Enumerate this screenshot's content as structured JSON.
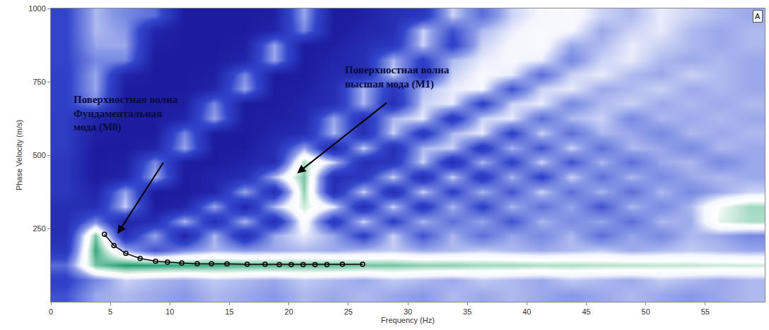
{
  "chart_data": {
    "type": "heatmap",
    "x_label": "Frequency (Hz)",
    "y_label": "Phase Velocity (m/s)",
    "xlim": [
      0,
      60
    ],
    "ylim": [
      0,
      1000
    ],
    "xticks": [
      0,
      5,
      10,
      15,
      20,
      25,
      30,
      35,
      40,
      45,
      50,
      55
    ],
    "yticks": [
      250,
      500,
      750,
      1000
    ],
    "grid": false,
    "panel_label": "A",
    "heatmap": {
      "x": [
        1.25,
        3.75,
        6.25,
        8.75,
        11.25,
        13.75,
        16.25,
        18.75,
        21.25,
        23.75,
        26.25,
        28.75,
        31.25,
        33.75,
        36.25,
        38.75,
        41.25,
        43.75,
        46.25,
        48.75,
        51.25,
        53.75,
        56.25,
        58.75
      ],
      "y": [
        25,
        75,
        125,
        175,
        225,
        275,
        325,
        375,
        425,
        475,
        525,
        575,
        625,
        675,
        725,
        775,
        825,
        875,
        925,
        975
      ],
      "cells": [
        [
          0.45,
          0.6,
          0.62,
          0.6,
          0.58,
          0.62,
          0.6,
          0.58,
          0.62,
          0.6,
          0.62,
          0.6,
          0.58,
          0.62,
          0.6,
          0.62,
          0.6,
          0.58,
          0.6,
          0.62,
          0.6,
          0.58,
          0.6,
          0.62
        ],
        [
          0.4,
          0.55,
          0.65,
          0.62,
          0.6,
          0.64,
          0.62,
          0.6,
          0.64,
          0.62,
          0.6,
          0.64,
          0.62,
          0.6,
          0.64,
          0.62,
          0.6,
          0.64,
          0.62,
          0.6,
          0.64,
          0.62,
          0.6,
          0.62
        ],
        [
          0.5,
          0.9,
          0.97,
          0.96,
          0.95,
          0.94,
          0.93,
          0.93,
          0.92,
          0.92,
          0.9,
          0.9,
          0.88,
          0.88,
          0.86,
          0.86,
          0.85,
          0.85,
          0.84,
          0.84,
          0.83,
          0.83,
          0.82,
          0.82
        ],
        [
          0.35,
          0.95,
          0.62,
          0.45,
          0.55,
          0.62,
          0.58,
          0.6,
          0.62,
          0.6,
          0.62,
          0.64,
          0.6,
          0.62,
          0.64,
          0.62,
          0.6,
          0.62,
          0.64,
          0.6,
          0.62,
          0.64,
          0.62,
          0.6
        ],
        [
          0.3,
          0.9,
          0.3,
          0.6,
          0.25,
          0.62,
          0.3,
          0.6,
          0.68,
          0.6,
          0.4,
          0.65,
          0.45,
          0.62,
          0.5,
          0.6,
          0.55,
          0.62,
          0.5,
          0.6,
          0.55,
          0.62,
          0.6,
          0.55
        ],
        [
          0.3,
          0.55,
          0.25,
          0.3,
          0.62,
          0.3,
          0.62,
          0.3,
          0.75,
          0.35,
          0.65,
          0.4,
          0.62,
          0.5,
          0.6,
          0.45,
          0.62,
          0.55,
          0.6,
          0.5,
          0.62,
          0.6,
          0.8,
          0.85
        ],
        [
          0.3,
          0.3,
          0.65,
          0.2,
          0.25,
          0.6,
          0.25,
          0.62,
          0.82,
          0.68,
          0.3,
          0.65,
          0.35,
          0.62,
          0.4,
          0.62,
          0.5,
          0.6,
          0.45,
          0.62,
          0.55,
          0.62,
          0.78,
          0.86
        ],
        [
          0.35,
          0.25,
          0.6,
          0.2,
          0.2,
          0.25,
          0.6,
          0.3,
          0.88,
          0.3,
          0.65,
          0.3,
          0.65,
          0.4,
          0.62,
          0.45,
          0.65,
          0.5,
          0.62,
          0.5,
          0.62,
          0.55,
          0.6,
          0.65
        ],
        [
          0.35,
          0.2,
          0.25,
          0.62,
          0.2,
          0.25,
          0.3,
          0.62,
          0.9,
          0.3,
          0.35,
          0.65,
          0.3,
          0.65,
          0.35,
          0.62,
          0.4,
          0.65,
          0.5,
          0.62,
          0.55,
          0.6,
          0.62,
          0.6
        ],
        [
          0.35,
          0.2,
          0.22,
          0.55,
          0.2,
          0.2,
          0.25,
          0.3,
          0.85,
          0.65,
          0.3,
          0.35,
          0.65,
          0.3,
          0.62,
          0.4,
          0.65,
          0.45,
          0.62,
          0.5,
          0.6,
          0.62,
          0.55,
          0.6
        ],
        [
          0.38,
          0.2,
          0.2,
          0.25,
          0.6,
          0.2,
          0.2,
          0.3,
          0.6,
          0.25,
          0.65,
          0.3,
          0.62,
          0.65,
          0.35,
          0.62,
          0.45,
          0.65,
          0.5,
          0.62,
          0.6,
          0.55,
          0.62,
          0.6
        ],
        [
          0.38,
          0.22,
          0.2,
          0.2,
          0.55,
          0.2,
          0.2,
          0.25,
          0.3,
          0.62,
          0.3,
          0.65,
          0.35,
          0.62,
          0.68,
          0.4,
          0.65,
          0.5,
          0.62,
          0.6,
          0.55,
          0.62,
          0.6,
          0.62
        ],
        [
          0.38,
          0.25,
          0.2,
          0.2,
          0.25,
          0.6,
          0.2,
          0.22,
          0.25,
          0.6,
          0.3,
          0.62,
          0.68,
          0.35,
          0.65,
          0.68,
          0.5,
          0.62,
          0.65,
          0.55,
          0.62,
          0.6,
          0.62,
          0.6
        ],
        [
          0.4,
          0.55,
          0.2,
          0.2,
          0.22,
          0.55,
          0.2,
          0.2,
          0.25,
          0.3,
          0.62,
          0.3,
          0.65,
          0.68,
          0.4,
          0.65,
          0.68,
          0.55,
          0.62,
          0.65,
          0.6,
          0.62,
          0.6,
          0.62
        ],
        [
          0.4,
          0.6,
          0.2,
          0.2,
          0.2,
          0.25,
          0.6,
          0.2,
          0.22,
          0.3,
          0.62,
          0.35,
          0.62,
          0.68,
          0.7,
          0.45,
          0.65,
          0.68,
          0.6,
          0.62,
          0.65,
          0.6,
          0.62,
          0.6
        ],
        [
          0.4,
          0.6,
          0.25,
          0.2,
          0.2,
          0.22,
          0.55,
          0.2,
          0.2,
          0.28,
          0.3,
          0.65,
          0.35,
          0.65,
          0.7,
          0.68,
          0.5,
          0.65,
          0.68,
          0.62,
          0.6,
          0.65,
          0.62,
          0.6
        ],
        [
          0.42,
          0.55,
          0.55,
          0.2,
          0.2,
          0.2,
          0.25,
          0.6,
          0.2,
          0.25,
          0.3,
          0.62,
          0.4,
          0.62,
          0.68,
          0.7,
          0.68,
          0.55,
          0.65,
          0.68,
          0.62,
          0.6,
          0.62,
          0.6
        ],
        [
          0.42,
          0.6,
          0.6,
          0.22,
          0.2,
          0.2,
          0.22,
          0.6,
          0.2,
          0.22,
          0.3,
          0.35,
          0.65,
          0.4,
          0.65,
          0.7,
          0.72,
          0.6,
          0.62,
          0.68,
          0.65,
          0.62,
          0.6,
          0.62
        ],
        [
          0.42,
          0.62,
          0.58,
          0.25,
          0.2,
          0.2,
          0.2,
          0.25,
          0.55,
          0.2,
          0.25,
          0.3,
          0.65,
          0.45,
          0.62,
          0.68,
          0.72,
          0.7,
          0.6,
          0.65,
          0.68,
          0.62,
          0.6,
          0.62
        ],
        [
          0.42,
          0.62,
          0.55,
          0.5,
          0.2,
          0.2,
          0.2,
          0.22,
          0.6,
          0.2,
          0.22,
          0.3,
          0.35,
          0.65,
          0.5,
          0.65,
          0.7,
          0.72,
          0.65,
          0.62,
          0.68,
          0.65,
          0.62,
          0.6
        ]
      ]
    },
    "series": [
      {
        "type": "line",
        "marker": "circle",
        "color": "#000000",
        "x": [
          4.5,
          5.3,
          6.3,
          7.5,
          8.8,
          9.8,
          11,
          12.3,
          13.5,
          14.8,
          16.5,
          18,
          19.2,
          20.2,
          21.2,
          22.2,
          23.2,
          24.5,
          26.2
        ],
        "values": [
          230,
          192,
          165,
          148,
          138,
          135,
          132,
          130,
          130,
          129,
          128,
          128,
          127,
          127,
          127,
          127,
          127,
          128,
          128
        ]
      }
    ],
    "annotations": [
      {
        "text": [
          "Поверхностная волна",
          "Фундаментальная",
          "мода (M0)"
        ],
        "x": 1.8,
        "y": 714,
        "arrow_from": [
          9.5,
          478
        ],
        "arrow_to": [
          5.6,
          232
        ]
      },
      {
        "text": [
          "Поверхностная волна",
          "высшая мода (M1)"
        ],
        "x": 24.6,
        "y": 816,
        "arrow_from": [
          28.3,
          681
        ],
        "arrow_to": [
          20.7,
          438
        ]
      }
    ]
  }
}
